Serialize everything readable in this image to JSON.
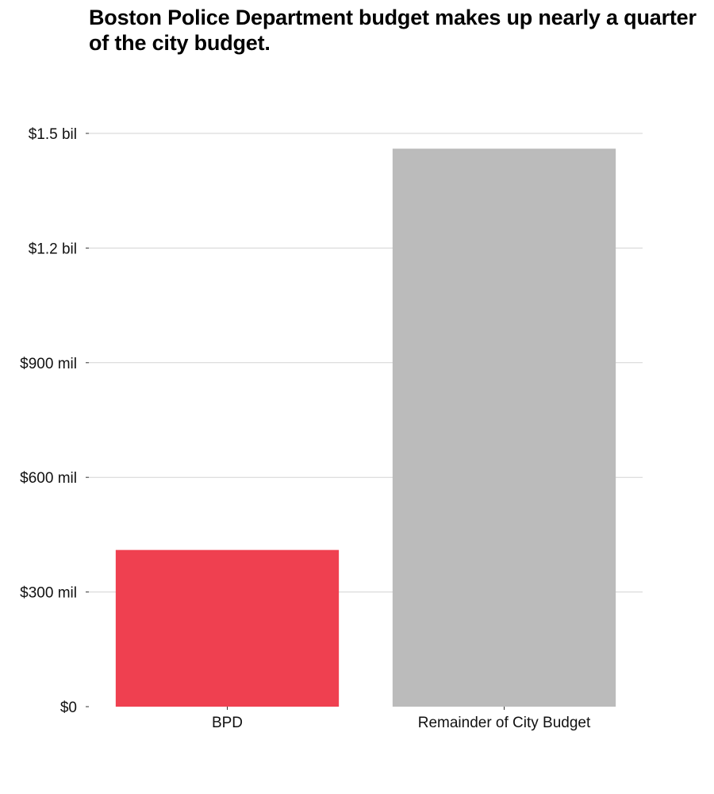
{
  "chart_data": {
    "type": "bar",
    "title": "Boston Police Department budget makes up nearly a quarter of the city budget.",
    "categories": [
      "BPD",
      "Remainder of City Budget"
    ],
    "values": [
      410000000,
      1460000000
    ],
    "bar_colors": [
      "#EF4050",
      "#BBBBBB"
    ],
    "xlabel": "",
    "ylabel": "",
    "ylim": [
      0,
      1500000000
    ],
    "y_ticks": [
      {
        "value": 0,
        "label": "$0"
      },
      {
        "value": 300000000,
        "label": "$300 mil"
      },
      {
        "value": 600000000,
        "label": "$600 mil"
      },
      {
        "value": 900000000,
        "label": "$900 mil"
      },
      {
        "value": 1200000000,
        "label": "$1.2 bil"
      },
      {
        "value": 1500000000,
        "label": "$1.5 bil"
      }
    ],
    "grid": true,
    "legend": "none",
    "grid_color": "#D3D3D3"
  }
}
